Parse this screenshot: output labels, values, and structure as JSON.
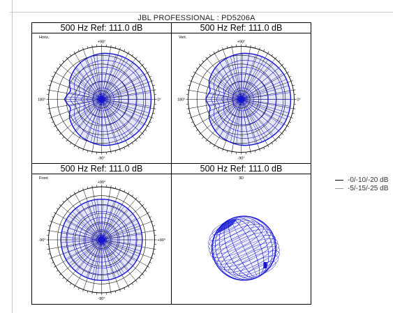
{
  "header": {
    "title": "JBL PROFESSIONAL : PD5206A"
  },
  "legend": {
    "items": [
      {
        "label": "-0/-10/-20 dB",
        "color": "#000000"
      },
      {
        "label": "-5/-15/-25 dB",
        "color": "#9c9c9c"
      }
    ]
  },
  "colors": {
    "pattern": "#1414d2",
    "grid": "#000000"
  },
  "chart_data": [
    {
      "type": "polar",
      "panel": "Horiz.",
      "title": "500 Hz Ref: 111.0 dB",
      "angle_labels": {
        "top": "+90°",
        "bottom": "-90°",
        "left": "180°",
        "right": "0°"
      },
      "rings_db": [
        0,
        -5,
        -10,
        -15,
        -20,
        -25
      ],
      "spokes_deg_step": 10,
      "pattern_db": [
        {
          "angle": 0,
          "db": -2
        },
        {
          "angle": 30,
          "db": -2
        },
        {
          "angle": 60,
          "db": -3
        },
        {
          "angle": 90,
          "db": -4
        },
        {
          "angle": 120,
          "db": -6
        },
        {
          "angle": 150,
          "db": -9
        },
        {
          "angle": 165,
          "db": -12
        },
        {
          "angle": 180,
          "db": -9
        },
        {
          "angle": 195,
          "db": -12
        },
        {
          "angle": 210,
          "db": -9
        },
        {
          "angle": 240,
          "db": -6
        },
        {
          "angle": 270,
          "db": -4
        },
        {
          "angle": 300,
          "db": -3
        },
        {
          "angle": 330,
          "db": -2
        }
      ]
    },
    {
      "type": "polar",
      "panel": "Vert.",
      "title": "500 Hz Ref: 111.0 dB",
      "angle_labels": {
        "top": "+90°",
        "bottom": "-90°",
        "left": "180°",
        "right": "0°"
      },
      "rings_db": [
        0,
        -5,
        -10,
        -15,
        -20,
        -25
      ],
      "spokes_deg_step": 10,
      "pattern_db": [
        {
          "angle": 0,
          "db": -2
        },
        {
          "angle": 30,
          "db": -2
        },
        {
          "angle": 60,
          "db": -3
        },
        {
          "angle": 90,
          "db": -4
        },
        {
          "angle": 120,
          "db": -6
        },
        {
          "angle": 150,
          "db": -9
        },
        {
          "angle": 165,
          "db": -12
        },
        {
          "angle": 180,
          "db": -10
        },
        {
          "angle": 195,
          "db": -12
        },
        {
          "angle": 210,
          "db": -9
        },
        {
          "angle": 240,
          "db": -6
        },
        {
          "angle": 270,
          "db": -4
        },
        {
          "angle": 300,
          "db": -3
        },
        {
          "angle": 330,
          "db": -2
        }
      ]
    },
    {
      "type": "polar",
      "panel": "Front",
      "title": "500 Hz Ref: 111.0 dB",
      "angle_labels": {
        "top": "+90°",
        "bottom": "-90°",
        "left": "-90°",
        "right": "+90°"
      },
      "rings_db": [
        0,
        -5,
        -10,
        -15,
        -20,
        -25
      ],
      "spokes_deg_step": 10,
      "pattern_db_uniform": -7
    },
    {
      "type": "3d-balloon",
      "panel": "3D",
      "title": "500 Hz Ref: 111.0 dB"
    }
  ]
}
